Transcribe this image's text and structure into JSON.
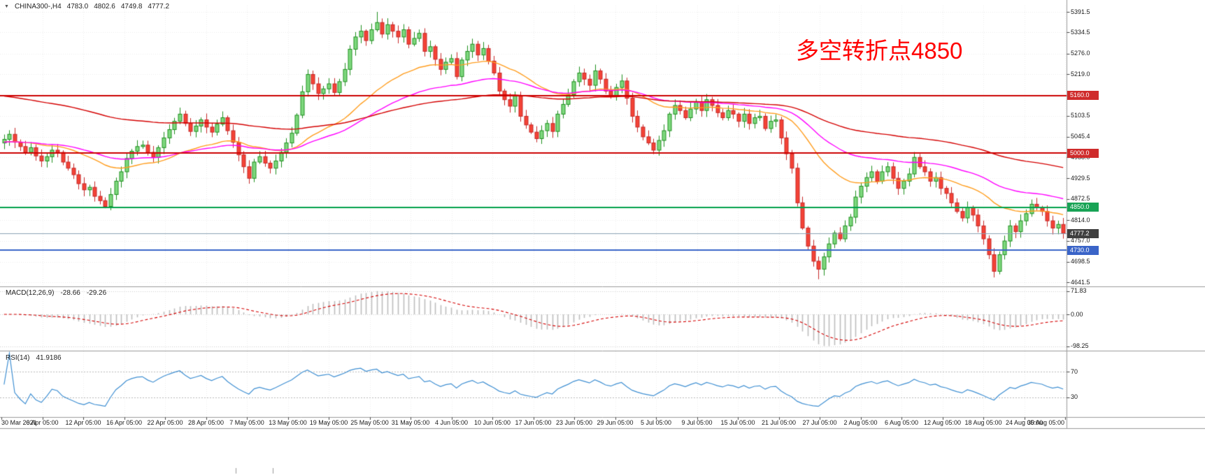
{
  "header": {
    "marker": "▼",
    "title": "CHINA300-,H4",
    "ohlc": [
      "4783.0",
      "4802.6",
      "4749.8",
      "4777.2"
    ]
  },
  "annotation": {
    "text": "多空转折点4850",
    "color": "#ff0000"
  },
  "colors": {
    "background": "#ffffff",
    "grid": "#ececec",
    "panel_border": "#9a9a9a",
    "axis_text": "#1a1a1a",
    "candle_up_fill": "#7fd87f",
    "candle_up_stroke": "#1e8f1e",
    "candle_down_fill": "#f44336",
    "candle_down_stroke": "#c62828"
  },
  "chart_data": [
    {
      "type": "candlestick",
      "title": "CHINA300-,H4",
      "timeframe": "H4",
      "ohlc_current": {
        "open": 4783.0,
        "high": 4802.6,
        "low": 4749.8,
        "close": 4777.2
      },
      "ylim": [
        4634,
        5409
      ],
      "first_open": 5028,
      "x_labels": [
        "30 Mar 2021",
        "6 Apr 05:00",
        "12 Apr 05:00",
        "16 Apr 05:00",
        "22 Apr 05:00",
        "28 Apr 05:00",
        "7 May 05:00",
        "13 May 05:00",
        "19 May 05:00",
        "25 May 05:00",
        "31 May 05:00",
        "4 Jun 05:00",
        "10 Jun 05:00",
        "17 Jun 05:00",
        "23 Jun 05:00",
        "29 Jun 05:00",
        "5 Jul 05:00",
        "9 Jul 05:00",
        "15 Jul 05:00",
        "21 Jul 05:00",
        "27 Jul 05:00",
        "2 Aug 05:00",
        "6 Aug 05:00",
        "12 Aug 05:00",
        "18 Aug 05:00",
        "24 Aug 05:00",
        "30 Aug 05:00"
      ],
      "price_ticks": [
        "5391.5",
        "5334.5",
        "5276.0",
        "5219.0",
        "5103.5",
        "5045.4",
        "4988.0",
        "4929.5",
        "4872.5",
        "4814.0",
        "4757.0",
        "4698.5",
        "4641.5"
      ],
      "closes": [
        5038,
        5052,
        5030,
        5018,
        5002,
        5015,
        4992,
        4978,
        4990,
        5008,
        5002,
        4975,
        4958,
        4940,
        4915,
        4898,
        4905,
        4880,
        4868,
        4852,
        4885,
        4922,
        4948,
        4985,
        5005,
        5018,
        5022,
        5002,
        4988,
        5015,
        5042,
        5065,
        5088,
        5108,
        5082,
        5060,
        5075,
        5092,
        5072,
        5058,
        5080,
        5098,
        5062,
        5030,
        4995,
        4962,
        4930,
        4975,
        4990,
        4972,
        4958,
        4978,
        5002,
        5028,
        5055,
        5105,
        5170,
        5218,
        5192,
        5165,
        5178,
        5192,
        5168,
        5198,
        5232,
        5288,
        5322,
        5338,
        5312,
        5342,
        5362,
        5330,
        5356,
        5338,
        5322,
        5342,
        5302,
        5318,
        5332,
        5282,
        5295,
        5260,
        5232,
        5252,
        5262,
        5212,
        5258,
        5282,
        5302,
        5272,
        5290,
        5255,
        5222,
        5172,
        5148,
        5130,
        5158,
        5102,
        5078,
        5058,
        5040,
        5062,
        5082,
        5060,
        5108,
        5135,
        5162,
        5198,
        5222,
        5205,
        5188,
        5228,
        5205,
        5172,
        5158,
        5182,
        5200,
        5152,
        5102,
        5072,
        5045,
        5028,
        5008,
        5035,
        5062,
        5108,
        5132,
        5118,
        5098,
        5122,
        5142,
        5118,
        5148,
        5132,
        5112,
        5098,
        5118,
        5108,
        5088,
        5108,
        5082,
        5098,
        5102,
        5068,
        5088,
        5092,
        5042,
        4998,
        4958,
        4862,
        4792,
        4742,
        4700,
        4678,
        4712,
        4748,
        4778,
        4762,
        4798,
        4822,
        4878,
        4908,
        4932,
        4948,
        4922,
        4948,
        4962,
        4930,
        4902,
        4922,
        4942,
        4988,
        4962,
        4948,
        4922,
        4932,
        4902,
        4888,
        4862,
        4838,
        4820,
        4848,
        4828,
        4798,
        4762,
        4718,
        4672,
        4718,
        4756,
        4798,
        4782,
        4812,
        4832,
        4858,
        4848,
        4838,
        4812,
        4792,
        4802,
        4777.2
      ],
      "extremes": [
        {
          "index": 70,
          "high": 5391.5
        },
        {
          "index": 153,
          "low": 4650.0
        },
        {
          "index": 186,
          "low": 4655.0
        }
      ],
      "moving_averages": [
        {
          "period": 30,
          "color": "#ff9d1e",
          "seed": 5030
        },
        {
          "period": 55,
          "color": "#ff00ff",
          "seed": 5030
        },
        {
          "period": 120,
          "color": "#d40000",
          "seed": 5160
        }
      ],
      "hlines": [
        {
          "price": 5160.0,
          "label": "5160.0",
          "color": "#cc0000",
          "tag_bg": "#cf2b2b",
          "line_width": 2
        },
        {
          "price": 5000.0,
          "label": "5000.0",
          "color": "#cc0000",
          "tag_bg": "#cf2b2b",
          "line_width": 2
        },
        {
          "price": 4850.0,
          "label": "4850.0",
          "color": "#00a04a",
          "tag_bg": "#18a355",
          "line_width": 2
        },
        {
          "price": 4730.0,
          "label": "4730.0",
          "color": "#3a64c8",
          "tag_bg": "#3a64c8",
          "line_width": 2
        }
      ],
      "current_price": {
        "value": 4777.2,
        "label": "4777.2",
        "tag_bg": "#3f3f3f",
        "line_color": "#8aa0b4"
      }
    },
    {
      "type": "macd",
      "label": "MACD(12,26,9)",
      "values_text": [
        "-28.66",
        "-29.26"
      ],
      "fast": 12,
      "slow": 26,
      "signal": 9,
      "axis_ticks": [
        "71.83",
        "0.00",
        "-98.25"
      ],
      "axis_tick_values": [
        71.83,
        0,
        -98.25
      ],
      "ylim": [
        -110,
        80
      ],
      "hist_color": "#bdbdbd",
      "signal_color": "#d40000"
    },
    {
      "type": "rsi",
      "label": "RSI(14)",
      "value_text": "41.9186",
      "period": 14,
      "levels": [
        70,
        30
      ],
      "axis_ticks": [
        "70",
        "30"
      ],
      "ylim": [
        0,
        100
      ],
      "line_color": "#3f8fd2"
    }
  ]
}
